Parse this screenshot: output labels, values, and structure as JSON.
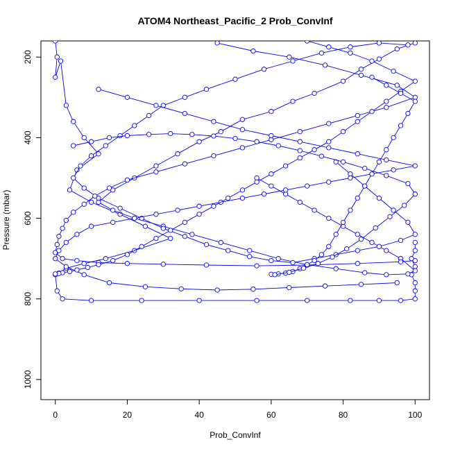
{
  "chart_data": {
    "type": "line",
    "title": "ATOM4 Northeast_Pacific_2 Prob_ConvInf",
    "xlabel": "Prob_ConvInf",
    "ylabel": "Pressure (mbar)",
    "xlim": [
      0,
      100
    ],
    "ylim": [
      1050,
      160
    ],
    "y_reversed": true,
    "x_ticks": [
      "0",
      "20",
      "40",
      "60",
      "80",
      "100"
    ],
    "y_ticks": [
      "200",
      "400",
      "600",
      "800",
      "1000"
    ],
    "grid": false,
    "legend": "none",
    "series_color": "#0000ff",
    "marker": "open-circle",
    "series": [
      {
        "x": [
          0,
          0.5,
          0,
          1.5,
          3,
          5,
          8,
          12,
          6,
          4,
          10,
          18,
          25,
          32,
          22,
          14,
          8,
          3,
          1,
          0,
          0.5,
          2,
          10,
          24,
          40,
          56,
          70,
          82,
          90,
          96,
          100,
          100,
          100,
          99,
          100,
          99,
          100,
          100
        ],
        "y": [
          160,
          200,
          250,
          210,
          320,
          360,
          400,
          440,
          480,
          530,
          560,
          590,
          620,
          650,
          680,
          700,
          712,
          724,
          736,
          740,
          780,
          800,
          804,
          804,
          804,
          804,
          804,
          804,
          804,
          804,
          800,
          780,
          760,
          740,
          720,
          700,
          680,
          660
        ]
      },
      {
        "x": [
          100,
          95,
          90,
          85,
          80,
          72,
          66,
          60,
          52,
          46,
          40,
          34,
          28,
          22,
          16,
          12,
          16,
          22,
          30,
          38,
          46,
          54,
          62,
          70,
          78,
          86,
          92,
          98,
          100,
          96,
          92,
          88,
          84,
          80,
          76,
          72,
          68,
          64,
          60,
          56
        ],
        "y": [
          165,
          180,
          205,
          230,
          260,
          290,
          310,
          335,
          355,
          385,
          410,
          440,
          470,
          500,
          530,
          560,
          580,
          600,
          620,
          640,
          660,
          680,
          700,
          715,
          725,
          735,
          740,
          738,
          730,
          700,
          680,
          660,
          640,
          620,
          600,
          580,
          560,
          540,
          520,
          500
        ]
      },
      {
        "x": [
          98,
          90,
          82,
          74,
          66,
          58,
          50,
          42,
          36,
          30,
          26,
          22,
          18,
          14,
          10,
          7,
          5,
          8,
          12,
          18,
          24,
          30,
          36,
          42,
          48,
          54,
          60,
          66,
          72,
          78,
          84,
          90,
          96,
          100,
          98,
          94,
          90,
          86,
          82,
          78
        ],
        "y": [
          170,
          165,
          175,
          190,
          210,
          230,
          255,
          280,
          300,
          320,
          345,
          370,
          395,
          420,
          445,
          470,
          500,
          525,
          550,
          575,
          600,
          625,
          645,
          665,
          680,
          695,
          705,
          710,
          700,
          690,
          680,
          670,
          655,
          640,
          610,
          580,
          550,
          520,
          490,
          460
        ]
      },
      {
        "x": [
          45,
          55,
          65,
          75,
          85,
          95,
          100,
          92,
          84,
          76,
          68,
          60,
          52,
          44,
          36,
          28,
          20,
          15,
          11,
          8,
          5,
          3,
          2,
          1,
          0.5,
          0,
          2,
          6,
          12,
          20,
          30,
          42,
          56,
          70,
          84,
          96,
          100
        ],
        "y": [
          165,
          185,
          200,
          220,
          245,
          270,
          300,
          325,
          345,
          365,
          385,
          405,
          425,
          445,
          465,
          485,
          505,
          525,
          545,
          565,
          585,
          605,
          625,
          645,
          665,
          685,
          700,
          705,
          710,
          712,
          714,
          716,
          718,
          716,
          712,
          708,
          705
        ]
      },
      {
        "x": [
          12,
          20,
          28,
          36,
          44,
          52,
          60,
          68,
          76,
          84,
          92,
          100,
          94,
          88,
          82,
          76,
          70,
          64,
          58,
          52,
          46,
          40,
          34,
          28,
          22,
          16,
          10,
          6,
          3,
          1,
          0,
          3,
          8,
          15,
          25,
          35,
          45,
          55,
          65,
          75,
          85,
          95
        ],
        "y": [
          280,
          300,
          320,
          340,
          360,
          380,
          395,
          410,
          425,
          440,
          455,
          470,
          480,
          490,
          500,
          510,
          520,
          530,
          540,
          550,
          560,
          570,
          580,
          590,
          600,
          610,
          620,
          640,
          660,
          680,
          700,
          720,
          740,
          760,
          770,
          775,
          778,
          776,
          772,
          768,
          764,
          760
        ]
      },
      {
        "x": [
          70,
          76,
          82,
          88,
          94,
          100,
          96,
          92,
          88,
          84,
          80,
          76,
          72,
          68,
          64,
          60,
          56,
          52,
          48,
          44,
          40,
          36,
          32,
          28,
          24,
          20,
          16,
          12,
          9,
          6,
          4,
          2,
          1,
          0
        ],
        "y": [
          160,
          175,
          190,
          210,
          235,
          260,
          285,
          310,
          335,
          360,
          385,
          410,
          430,
          450,
          470,
          490,
          510,
          530,
          550,
          570,
          590,
          610,
          630,
          650,
          670,
          690,
          705,
          715,
          722,
          728,
          732,
          735,
          737,
          738
        ]
      },
      {
        "x": [
          88,
          92,
          96,
          100,
          98,
          96,
          94,
          92,
          90,
          88,
          86,
          84,
          82,
          80,
          78,
          76,
          74,
          72,
          70,
          68,
          66,
          64,
          62,
          60
        ],
        "y": [
          250,
          270,
          290,
          310,
          340,
          370,
          400,
          430,
          460,
          490,
          520,
          550,
          580,
          610,
          640,
          670,
          690,
          705,
          715,
          725,
          732,
          736,
          738,
          739
        ]
      },
      {
        "x": [
          5,
          10,
          15,
          20,
          26,
          32,
          38,
          44,
          50,
          56,
          62,
          68,
          74,
          80,
          86,
          92,
          98,
          100,
          97,
          93,
          89,
          85,
          81,
          77,
          73,
          69,
          65,
          61
        ],
        "y": [
          420,
          410,
          400,
          395,
          392,
          390,
          392,
          396,
          402,
          410,
          420,
          432,
          446,
          460,
          476,
          494,
          514,
          540,
          568,
          596,
          624,
          652,
          676,
          696,
          712,
          724,
          734,
          740
        ]
      }
    ]
  }
}
